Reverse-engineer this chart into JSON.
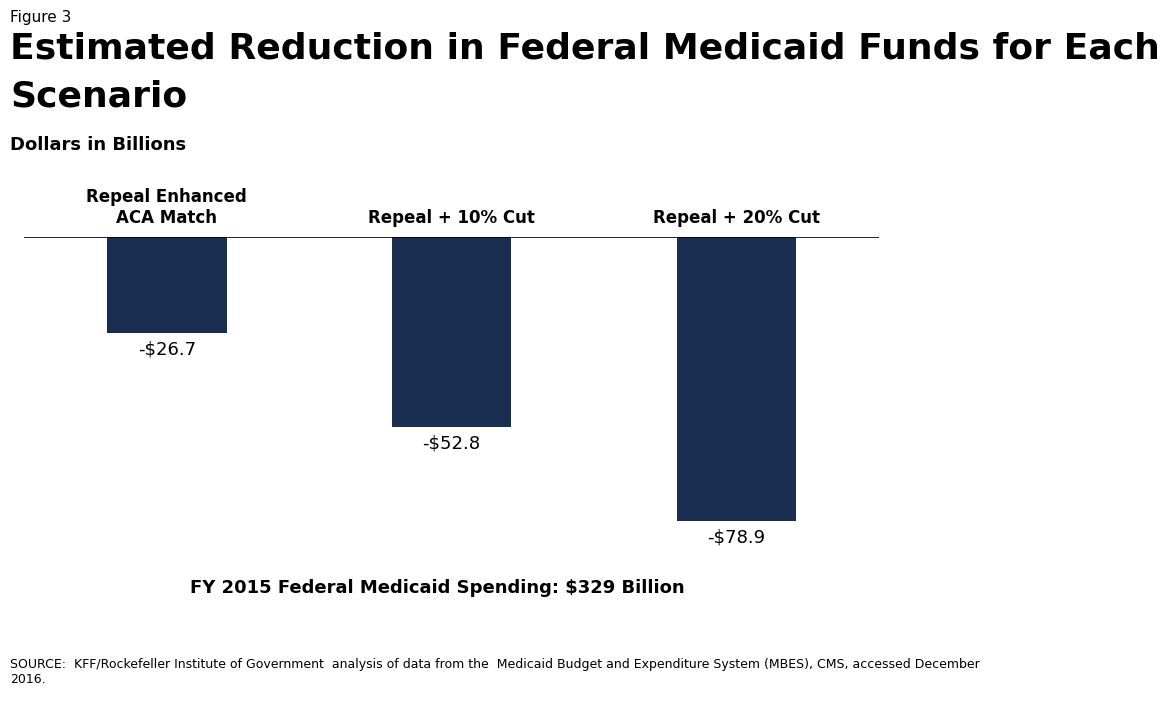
{
  "figure_label": "Figure 3",
  "title_line1": "Estimated Reduction in Federal Medicaid Funds for Each",
  "title_line2": "Scenario",
  "subtitle": "Dollars in Billions",
  "categories": [
    "Repeal Enhanced\nACA Match",
    "Repeal + 10% Cut",
    "Repeal + 20% Cut"
  ],
  "values": [
    -26.7,
    -52.8,
    -78.9
  ],
  "value_labels": [
    "-$26.7",
    "-$52.8",
    "-$78.9"
  ],
  "bar_color": "#1a2e52",
  "ylim": [
    -88,
    0
  ],
  "footnote_text": "FY 2015 Federal Medicaid Spending: $329 Billion",
  "source_text": "SOURCE:  KFF/Rockefeller Institute of Government  analysis of data from the  Medicaid Budget and Expenditure System (MBES), CMS, accessed December\n2016.",
  "background_color": "#ffffff",
  "title_fontsize": 26,
  "figure_label_fontsize": 11,
  "subtitle_fontsize": 13,
  "category_fontsize": 12,
  "value_fontsize": 13,
  "footnote_fontsize": 13,
  "source_fontsize": 9,
  "logo_color": "#1a2e52"
}
